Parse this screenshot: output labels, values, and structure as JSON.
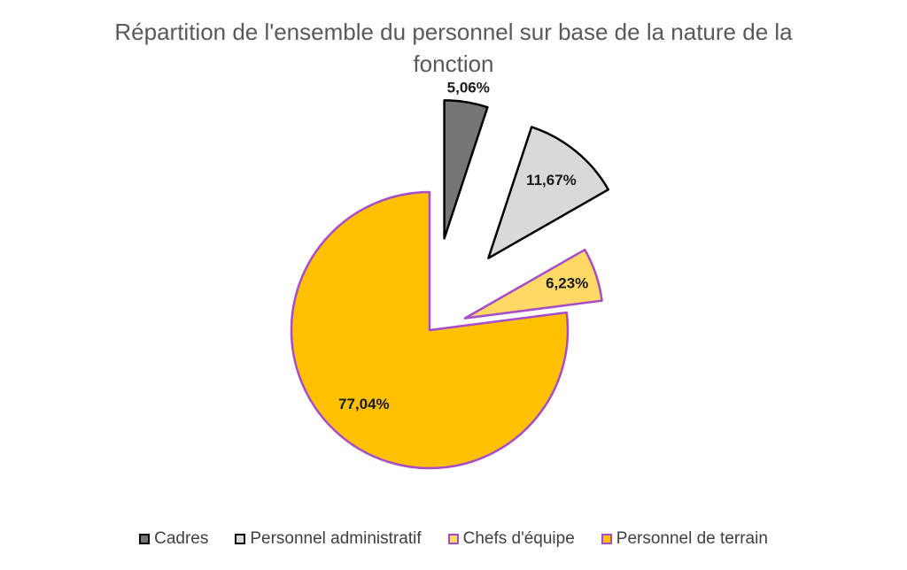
{
  "chart_data": {
    "type": "pie",
    "title": "Répartition de l'ensemble du personnel sur base de la nature de la fonction",
    "categories": [
      "Cadres",
      "Personnel administratif",
      "Chefs d'équipe",
      "Personnel de terrain"
    ],
    "values": [
      5.06,
      11.67,
      6.23,
      77.04
    ],
    "value_labels": [
      "5,06%",
      "11,67%",
      "6,23%",
      "77,04%"
    ],
    "colors": [
      "#767676",
      "#d9d9d9",
      "#ffd966",
      "#ffc000"
    ],
    "edge_colors": [
      "#000000",
      "#000000",
      "#a64dc9",
      "#a64dc9"
    ],
    "legend": "bottom"
  }
}
